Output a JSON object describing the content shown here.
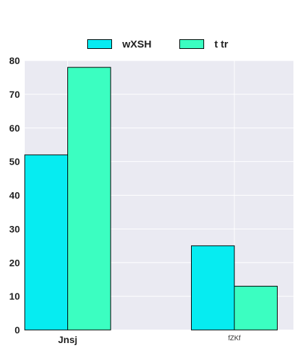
{
  "chart_data": {
    "type": "bar",
    "title": "",
    "xlabel": "",
    "ylabel": "",
    "categories": [
      "Jnsj",
      "fZKf"
    ],
    "series": [
      {
        "name": "wXSH",
        "values": [
          52,
          25
        ],
        "color": "#06ECF1"
      },
      {
        "name": "t tr",
        "values": [
          78,
          13
        ],
        "color": "#3BFEC1"
      }
    ],
    "ylim": [
      0,
      80
    ],
    "yticks": [
      "0",
      "10",
      "20",
      "30",
      "40",
      "50",
      "60",
      "70",
      "80"
    ],
    "grid": true,
    "legend_position": "top-center",
    "plot_background": "#EAEAF2"
  }
}
